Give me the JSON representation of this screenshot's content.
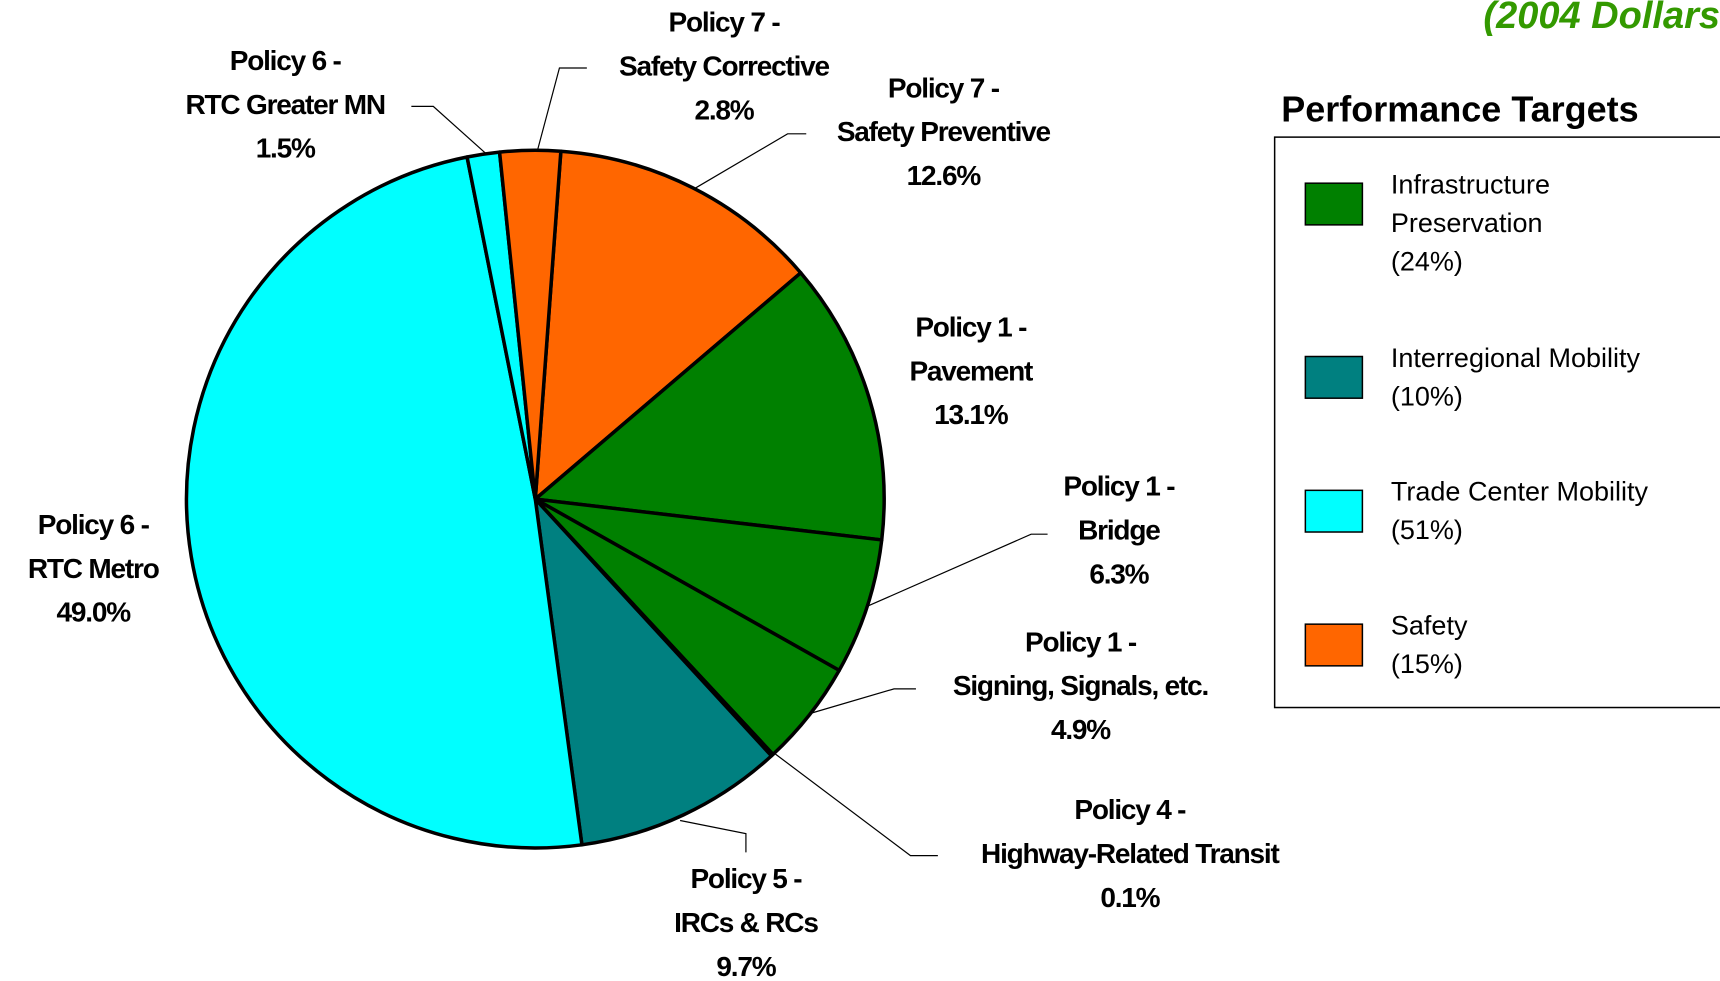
{
  "chart_data": {
    "type": "pie",
    "subtitle": "(2004 Dollars",
    "categories": [
      [
        "Policy 7 -",
        "Safety Preventive"
      ],
      [
        "Policy 1 -",
        "Pavement"
      ],
      [
        "Policy 1 -",
        "Bridge"
      ],
      [
        "Policy 1 -",
        "Signing, Signals, etc."
      ],
      [
        "Policy 4 -",
        "Highway-Related Transit"
      ],
      [
        "Policy 5 -",
        "IRCs & RCs"
      ],
      [
        "Policy 6 -",
        "RTC Metro"
      ],
      [
        "Policy 6 -",
        "RTC Greater MN"
      ],
      [
        "Policy 7 -",
        "Safety Corrective"
      ]
    ],
    "values": [
      12.6,
      13.1,
      6.3,
      4.9,
      0.1,
      9.7,
      49.0,
      1.5,
      2.8
    ],
    "value_labels": [
      "12.6%",
      "13.1%",
      "6.3%",
      "4.9%",
      "0.1%",
      "9.7%",
      "49.0%",
      "1.5%",
      "2.8%"
    ],
    "colors": [
      "#ff6600",
      "#008000",
      "#008000",
      "#008000",
      "#008080",
      "#008080",
      "#00ffff",
      "#00ffff",
      "#ff6600"
    ],
    "legend": {
      "title": "Performance Targets",
      "items": [
        {
          "lines": [
            "Infrastructure",
            "Preservation",
            "(24%)"
          ],
          "color": "#008000"
        },
        {
          "lines": [
            "Interregional Mobility",
            "(10%)"
          ],
          "color": "#008080"
        },
        {
          "lines": [
            "Trade Center Mobility",
            "(51%)"
          ],
          "color": "#00ffff"
        },
        {
          "lines": [
            "Safety",
            "(15%)"
          ],
          "color": "#ff6600"
        }
      ]
    }
  }
}
